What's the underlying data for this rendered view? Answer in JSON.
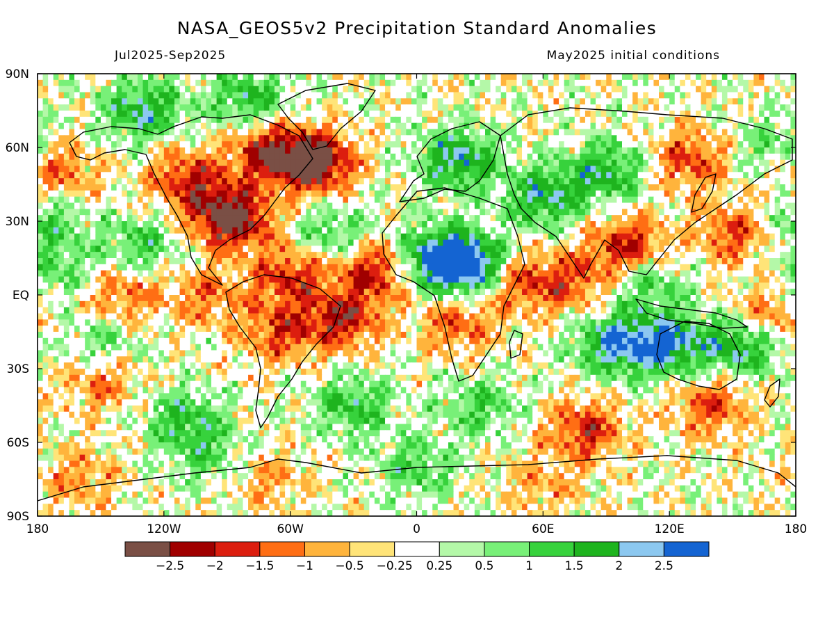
{
  "header": {
    "title": "NASA_GEOS5v2 Precipitation Standard Anomalies",
    "period": "Jul2025-Sep2025",
    "init": "May2025 initial conditions"
  },
  "map": {
    "lon_range": [
      -180,
      180
    ],
    "lat_range": [
      -90,
      90
    ],
    "lon_ticks": [
      {
        "value": -180,
        "label": "180"
      },
      {
        "value": -120,
        "label": "120W"
      },
      {
        "value": -60,
        "label": "60W"
      },
      {
        "value": 0,
        "label": "0"
      },
      {
        "value": 60,
        "label": "60E"
      },
      {
        "value": 120,
        "label": "120E"
      },
      {
        "value": 180,
        "label": "180"
      }
    ],
    "lat_ticks": [
      {
        "value": 90,
        "label": "90N"
      },
      {
        "value": 60,
        "label": "60N"
      },
      {
        "value": 30,
        "label": "30N"
      },
      {
        "value": 0,
        "label": "EQ"
      },
      {
        "value": -30,
        "label": "30S"
      },
      {
        "value": -60,
        "label": "60S"
      },
      {
        "value": -90,
        "label": "90S"
      }
    ]
  },
  "colorbar": {
    "colors": [
      "#7a4f45",
      "#a00000",
      "#dc1e0f",
      "#ff6e14",
      "#ffb43c",
      "#ffe478",
      "#ffffff",
      "#b4f8a8",
      "#78f078",
      "#37d23c",
      "#1eb41e",
      "#8cc8f0",
      "#1464d2"
    ],
    "labels": [
      "-2.5",
      "-2",
      "-1.5",
      "-1",
      "-0.5",
      "-0.25",
      "0.25",
      "0.5",
      "1",
      "1.5",
      "2",
      "2.5"
    ]
  },
  "regions": [
    {
      "lon": -48,
      "lat": 54,
      "v": -3
    },
    {
      "lon": -70,
      "lat": 58,
      "v": -2.2
    },
    {
      "lon": -110,
      "lat": 48,
      "v": -1.6
    },
    {
      "lon": -95,
      "lat": 35,
      "v": -1.5
    },
    {
      "lon": -85,
      "lat": 30,
      "v": -2
    },
    {
      "lon": -170,
      "lat": 50,
      "v": -1.4
    },
    {
      "lon": -60,
      "lat": 8,
      "v": -1.8
    },
    {
      "lon": -20,
      "lat": 10,
      "v": -2
    },
    {
      "lon": -35,
      "lat": -10,
      "v": -2
    },
    {
      "lon": -65,
      "lat": -15,
      "v": -1.6
    },
    {
      "lon": -140,
      "lat": 0,
      "v": -1.3
    },
    {
      "lon": -100,
      "lat": 0,
      "v": -1.2
    },
    {
      "lon": 20,
      "lat": -12,
      "v": -1.4
    },
    {
      "lon": 50,
      "lat": 5,
      "v": -1.5
    },
    {
      "lon": 100,
      "lat": 20,
      "v": -2
    },
    {
      "lon": 75,
      "lat": 5,
      "v": -1.3
    },
    {
      "lon": 150,
      "lat": 25,
      "v": -1.5
    },
    {
      "lon": 130,
      "lat": 55,
      "v": -1.6
    },
    {
      "lon": 165,
      "lat": -10,
      "v": -1.4
    },
    {
      "lon": -150,
      "lat": -35,
      "v": -1.2
    },
    {
      "lon": 80,
      "lat": -55,
      "v": -1.8
    },
    {
      "lon": 140,
      "lat": -45,
      "v": -1.5
    },
    {
      "lon": -160,
      "lat": -75,
      "v": -1
    },
    {
      "lon": 60,
      "lat": -78,
      "v": -0.8
    },
    {
      "lon": -70,
      "lat": -75,
      "v": -0.8
    },
    {
      "lon": 10,
      "lat": 15,
      "v": 2.7
    },
    {
      "lon": 25,
      "lat": 12,
      "v": 2.6
    },
    {
      "lon": 120,
      "lat": -20,
      "v": 2.5
    },
    {
      "lon": 95,
      "lat": -20,
      "v": 2.4
    },
    {
      "lon": 155,
      "lat": -20,
      "v": 2.2
    },
    {
      "lon": 60,
      "lat": 40,
      "v": 2
    },
    {
      "lon": 20,
      "lat": 55,
      "v": 2.2
    },
    {
      "lon": 90,
      "lat": 50,
      "v": 1.8
    },
    {
      "lon": -130,
      "lat": 75,
      "v": 2
    },
    {
      "lon": -80,
      "lat": 80,
      "v": 1.6
    },
    {
      "lon": -130,
      "lat": 20,
      "v": 1.3
    },
    {
      "lon": -40,
      "lat": 25,
      "v": 1.2
    },
    {
      "lon": -110,
      "lat": -50,
      "v": 1.4
    },
    {
      "lon": -30,
      "lat": -45,
      "v": 1.5
    },
    {
      "lon": 30,
      "lat": -45,
      "v": 1.2
    },
    {
      "lon": 110,
      "lat": 5,
      "v": 1.2
    },
    {
      "lon": -170,
      "lat": 10,
      "v": 1
    },
    {
      "lon": -175,
      "lat": 30,
      "v": 1.2
    },
    {
      "lon": 170,
      "lat": 60,
      "v": 1
    },
    {
      "lon": 0,
      "lat": -70,
      "v": 1.2
    },
    {
      "lon": -100,
      "lat": -65,
      "v": 1
    },
    {
      "lon": -150,
      "lat": -20,
      "v": 1
    }
  ]
}
